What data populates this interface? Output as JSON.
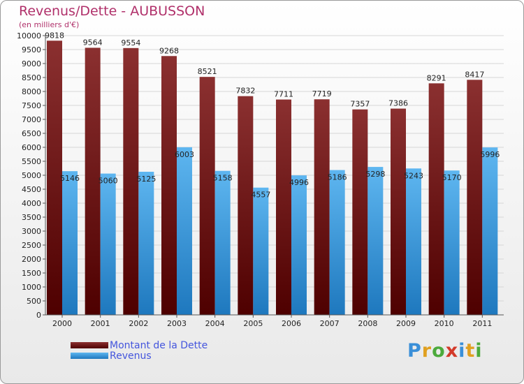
{
  "colors": {
    "dette_top": "#8b3030",
    "dette_bottom": "#4e0000",
    "revenus_top": "#5eb6f0",
    "revenus_bottom": "#1e78be",
    "title": "#b0306a",
    "legend_text": "#4455dd"
  },
  "legend": {
    "dette_label": "Montant de la Dette",
    "revenus_label": "Revenus"
  },
  "logo": {
    "text": "Proxiti"
  },
  "chart_data": {
    "type": "bar",
    "title": "Revenus/Dette - AUBUSSON",
    "subtitle": "(en milliers d'€)",
    "xlabel": "",
    "ylabel": "",
    "ylim": [
      0,
      10000
    ],
    "ytick_step": 500,
    "grid": true,
    "legend_position": "bottom-left",
    "categories": [
      "2000",
      "2001",
      "2002",
      "2003",
      "2004",
      "2005",
      "2006",
      "2007",
      "2008",
      "2009",
      "2010",
      "2011"
    ],
    "series": [
      {
        "name": "Montant de la Dette",
        "values": [
          9818,
          9564,
          9554,
          9268,
          8521,
          7832,
          7711,
          7719,
          7357,
          7386,
          8291,
          8417
        ]
      },
      {
        "name": "Revenus",
        "values": [
          5146,
          5060,
          5125,
          6003,
          5158,
          4557,
          4996,
          5186,
          5298,
          5243,
          5170,
          5996
        ]
      }
    ]
  }
}
